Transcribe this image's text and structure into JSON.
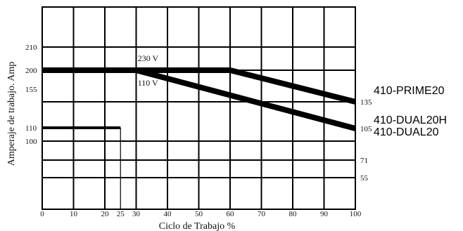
{
  "chart_data": {
    "type": "line",
    "title": "",
    "xlabel": "Ciclo de Trabajo %",
    "ylabel": "Amperaje de trabajo. Amp",
    "xlim": [
      0,
      100
    ],
    "x_ticks": [
      {
        "value": 0,
        "label": "0"
      },
      {
        "value": 10,
        "label": "10"
      },
      {
        "value": 20,
        "label": "20"
      },
      {
        "value": 25,
        "label": "25"
      },
      {
        "value": 30,
        "label": "30"
      },
      {
        "value": 40,
        "label": "40"
      },
      {
        "value": 50,
        "label": "50"
      },
      {
        "value": 60,
        "label": "60"
      },
      {
        "value": 70,
        "label": "70"
      },
      {
        "value": 80,
        "label": "80"
      },
      {
        "value": 90,
        "label": "90"
      },
      {
        "value": 100,
        "label": "100"
      }
    ],
    "y_ticks_left": [
      {
        "value": 210,
        "label": "210"
      },
      {
        "value": 200,
        "label": "200"
      },
      {
        "value": 155,
        "label": "155"
      },
      {
        "value": 110,
        "label": "110"
      },
      {
        "value": 100,
        "label": "100"
      }
    ],
    "y_ticks_right": [
      {
        "value": 135,
        "label": "135"
      },
      {
        "value": 105,
        "label": "105"
      },
      {
        "value": 71,
        "label": "71"
      },
      {
        "value": 55,
        "label": "55"
      }
    ],
    "grid": true,
    "series": [
      {
        "name": "410-PRIME20",
        "x": [
          0,
          60,
          100
        ],
        "y": [
          200,
          200,
          135
        ]
      },
      {
        "name": "410-DUAL20H",
        "x": [
          0,
          30,
          100
        ],
        "y": [
          200,
          200,
          105
        ]
      },
      {
        "name": "",
        "x": [
          0,
          25
        ],
        "y": [
          110,
          110
        ]
      }
    ],
    "annotations": [
      {
        "text": "230 V",
        "x": 30.5,
        "y": 204
      },
      {
        "text": "110 V",
        "x": 30.5,
        "y": 163
      }
    ],
    "model_labels": [
      "410-PRIME20",
      "410-DUAL20H",
      "410-DUAL20"
    ]
  }
}
